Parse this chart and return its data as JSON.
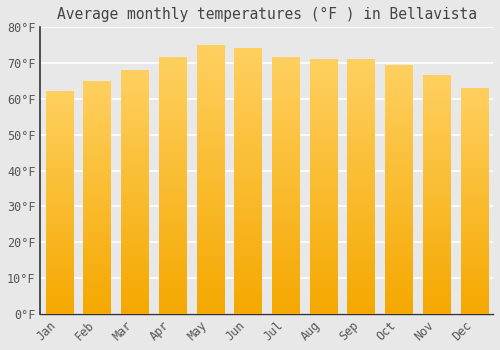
{
  "title": "Average monthly temperatures (°F ) in Bellavista",
  "months": [
    "Jan",
    "Feb",
    "Mar",
    "Apr",
    "May",
    "Jun",
    "Jul",
    "Aug",
    "Sep",
    "Oct",
    "Nov",
    "Dec"
  ],
  "values": [
    62,
    65,
    68,
    71.5,
    75,
    74,
    71.5,
    71,
    71,
    69.5,
    66.5,
    63
  ],
  "bar_color_bottom": "#F5A800",
  "bar_color_top": "#FFD060",
  "background_color": "#E8E8E8",
  "ylim": [
    0,
    80
  ],
  "ytick_step": 10,
  "grid_color": "#FFFFFF",
  "title_fontsize": 10.5,
  "tick_fontsize": 8.5,
  "tick_color": "#555555",
  "title_color": "#444444",
  "spine_color": "#333333"
}
